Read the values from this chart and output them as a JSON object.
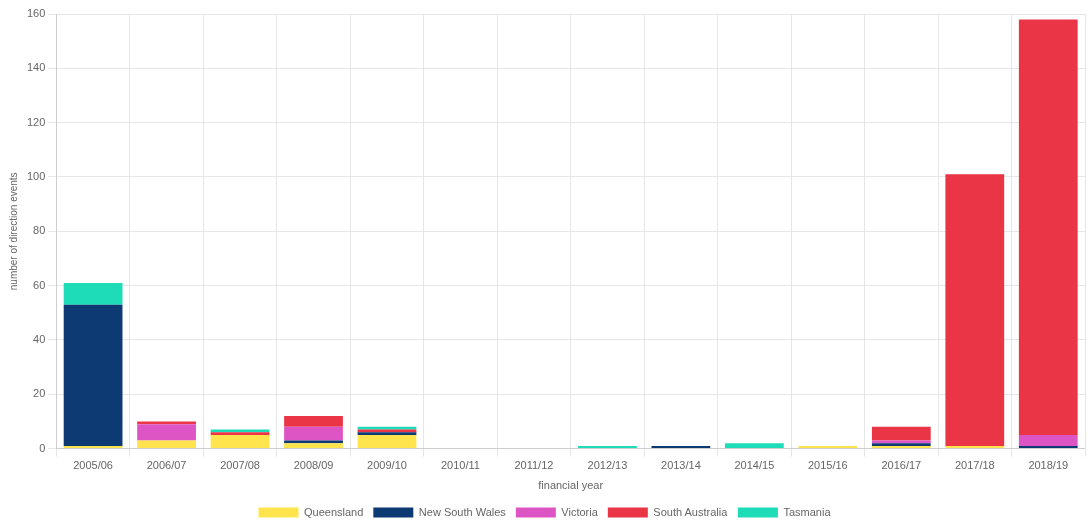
{
  "chart_data": {
    "type": "bar",
    "stacked": true,
    "xlabel": "financial year",
    "ylabel": "number of direction events",
    "categories": [
      "2005/06",
      "2006/07",
      "2007/08",
      "2008/09",
      "2009/10",
      "2010/11",
      "2011/12",
      "2012/13",
      "2013/14",
      "2014/15",
      "2015/16",
      "2016/17",
      "2017/18",
      "2018/19"
    ],
    "series": [
      {
        "name": "Queensland",
        "color": "#ffe44d",
        "values": [
          1,
          3,
          5,
          2,
          5,
          0,
          0,
          0,
          0,
          0,
          1,
          1,
          1,
          0
        ]
      },
      {
        "name": "New South Wales",
        "color": "#0d3a73",
        "values": [
          52,
          0,
          0,
          1,
          1,
          0,
          0,
          0,
          1,
          0,
          0,
          1,
          0,
          1
        ]
      },
      {
        "name": "Victoria",
        "color": "#dd55c4",
        "values": [
          0,
          6,
          0,
          5,
          0,
          0,
          0,
          0,
          0,
          0,
          0,
          1,
          0,
          4
        ]
      },
      {
        "name": "South Australia",
        "color": "#ea3546",
        "values": [
          0,
          1,
          1,
          4,
          1,
          0,
          0,
          0,
          0,
          0,
          0,
          5,
          100,
          153
        ]
      },
      {
        "name": "Tasmania",
        "color": "#1fdcb8",
        "values": [
          8,
          0,
          1,
          0,
          1,
          0,
          0,
          1,
          0,
          2,
          0,
          0,
          0,
          0
        ]
      }
    ],
    "ylim": [
      0,
      160
    ],
    "yticks": [
      0,
      20,
      40,
      60,
      80,
      100,
      120,
      140,
      160
    ],
    "grid": true,
    "legend": "bottom"
  }
}
